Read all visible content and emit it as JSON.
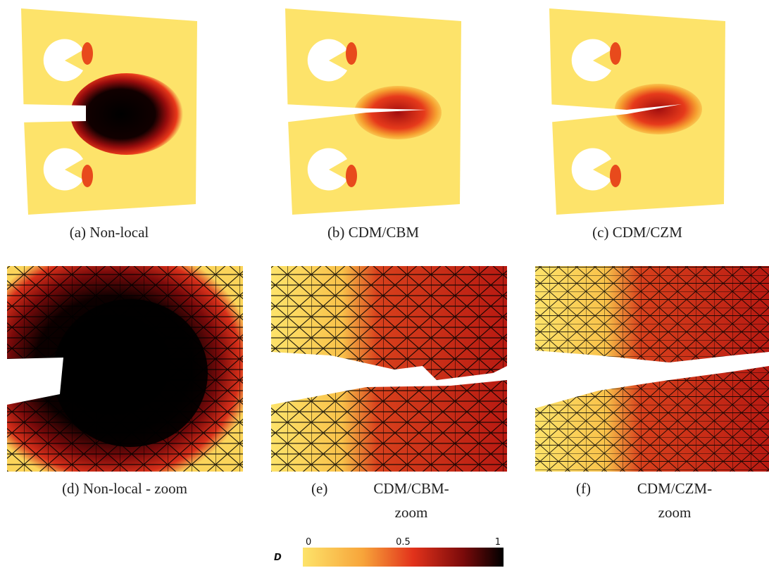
{
  "panels": [
    {
      "label": "(a)",
      "caption": [
        "Non-local"
      ]
    },
    {
      "label": "(b)",
      "caption": [
        "CDM/CBM"
      ]
    },
    {
      "label": "(c)",
      "caption": [
        "CDM/CZM"
      ]
    },
    {
      "label": "(d)",
      "caption": [
        "Non-local - zoom"
      ]
    },
    {
      "label": "(e)",
      "caption": [
        "CDM/CBM-",
        "zoom"
      ]
    },
    {
      "label": "(f)",
      "caption": [
        "CDM/CZM-",
        "zoom"
      ]
    }
  ],
  "colorbar": {
    "label": "D",
    "ticks": [
      0,
      0.5,
      1
    ]
  }
}
